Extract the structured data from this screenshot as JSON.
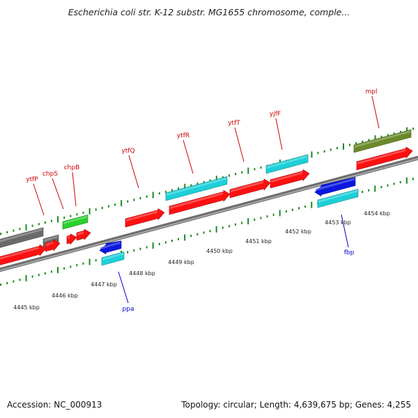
{
  "title": "Escherichia coli str. K-12 substr. MG1655 chromosome, comple...",
  "footer": {
    "accession": "Accession: NC_000913",
    "summary": "Topology: circular; Length: 4,639,675 bp; Genes: 4,255"
  },
  "colors": {
    "forward_cds": "#ff1010",
    "reverse_cds": "#0a18e0",
    "gene_cyan": "#1cd0d8",
    "gene_green": "#2ad02a",
    "gene_olive": "#6a8a2a",
    "gene_gray": "#6a6a6a",
    "label_red": "#cc0000",
    "label_blue": "#0000cc",
    "tick_green": "#1a8a1a"
  },
  "kbp_labels": [
    "4445 kbp",
    "4446 kbp",
    "4447 kbp",
    "4448 kbp",
    "4449 kbp",
    "4450 kbp",
    "4451 kbp",
    "4452 kbp",
    "4453 kbp",
    "4454 kbp"
  ],
  "upper_genes": [
    "ytfP",
    "chpS",
    "chpB",
    "ytfQ",
    "ytfR",
    "ytfT",
    "yjfF",
    "mpl"
  ],
  "lower_genes": [
    "ppa",
    "fbp"
  ]
}
